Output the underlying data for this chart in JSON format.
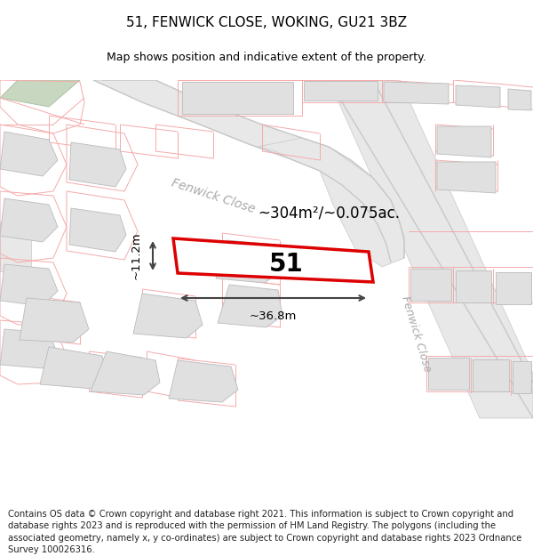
{
  "title": "51, FENWICK CLOSE, WOKING, GU21 3BZ",
  "subtitle": "Map shows position and indicative extent of the property.",
  "footer": "Contains OS data © Crown copyright and database right 2021. This information is subject to Crown copyright and database rights 2023 and is reproduced with the permission of HM Land Registry. The polygons (including the associated geometry, namely x, y co-ordinates) are subject to Crown copyright and database rights 2023 Ordnance Survey 100026316.",
  "area_label": "~304m²/~0.075ac.",
  "number_label": "51",
  "width_label": "~36.8m",
  "height_label": "~11.2m",
  "background_color": "#ffffff",
  "map_bg_color": "#f7f7f7",
  "building_fill": "#e0e0e0",
  "building_edge": "#bbbbbb",
  "cadastral_color": "#f5aaaa",
  "plot_line_color": "#dd0000",
  "road_gray": "#c8c8c8",
  "road_fill": "#e8e8e8",
  "dim_color": "#444444",
  "label_gray": "#aaaaaa",
  "green_fill": "#c8d8c0",
  "title_fontsize": 11,
  "subtitle_fontsize": 9,
  "footer_fontsize": 7.2
}
